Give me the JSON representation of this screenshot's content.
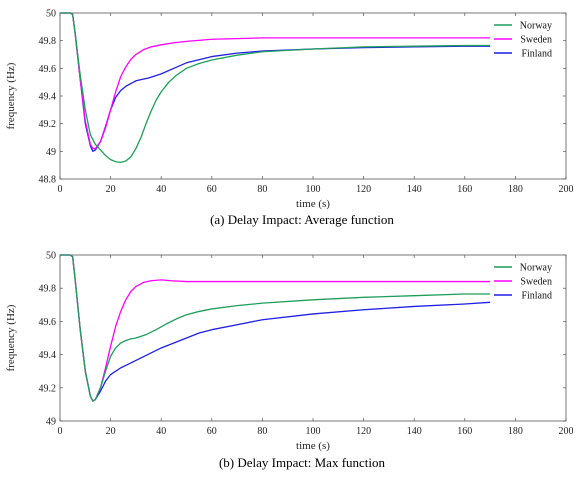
{
  "colors": {
    "norway": "#1f9e5a",
    "sweden": "#ff00ff",
    "finland": "#1f1fe6"
  },
  "chart_data": [
    {
      "type": "line",
      "caption": "(a) Delay Impact: Average function",
      "xlabel": "time (s)",
      "ylabel": "frequency (Hz)",
      "xlim": [
        0,
        200
      ],
      "ylim": [
        48.8,
        50
      ],
      "xticks": [
        0,
        20,
        40,
        60,
        80,
        100,
        120,
        140,
        160,
        180,
        200
      ],
      "yticks": [
        48.8,
        49,
        49.2,
        49.4,
        49.6,
        49.8,
        50
      ],
      "ytick_labels": [
        "48.8",
        "49",
        "49.2",
        "49.4",
        "49.6",
        "49.8",
        "50"
      ],
      "legend": "top-right",
      "series": [
        {
          "name": "Norway",
          "color": "#1f9e5a",
          "x": [
            0,
            4,
            5,
            6,
            8,
            10,
            12,
            14,
            16,
            18,
            20,
            22,
            24,
            26,
            28,
            30,
            32,
            34,
            36,
            38,
            40,
            43,
            46,
            50,
            55,
            60,
            70,
            80,
            100,
            120,
            140,
            160,
            170
          ],
          "y": [
            50,
            50,
            49.99,
            49.85,
            49.55,
            49.3,
            49.12,
            49.05,
            49.01,
            48.97,
            48.94,
            48.925,
            48.92,
            48.93,
            48.96,
            49.02,
            49.1,
            49.2,
            49.29,
            49.37,
            49.43,
            49.5,
            49.55,
            49.6,
            49.635,
            49.66,
            49.695,
            49.72,
            49.74,
            49.755,
            49.76,
            49.765,
            49.765
          ]
        },
        {
          "name": "Sweden",
          "color": "#ff00ff",
          "x": [
            0,
            4,
            5,
            6,
            8,
            10,
            12,
            13,
            14,
            16,
            18,
            20,
            22,
            24,
            26,
            28,
            30,
            33,
            36,
            40,
            45,
            50,
            60,
            70,
            80,
            100,
            120,
            140,
            160,
            170
          ],
          "y": [
            50,
            50,
            49.99,
            49.85,
            49.52,
            49.22,
            49.05,
            49.02,
            49.02,
            49.07,
            49.17,
            49.3,
            49.43,
            49.54,
            49.61,
            49.665,
            49.7,
            49.735,
            49.755,
            49.77,
            49.785,
            49.795,
            49.81,
            49.815,
            49.82,
            49.82,
            49.82,
            49.82,
            49.82,
            49.82
          ]
        },
        {
          "name": "Finland",
          "color": "#1f1fe6",
          "x": [
            0,
            4,
            5,
            6,
            8,
            10,
            12,
            13,
            14,
            16,
            18,
            20,
            22,
            24,
            26,
            30,
            35,
            40,
            45,
            50,
            60,
            70,
            80,
            100,
            120,
            140,
            160,
            170
          ],
          "y": [
            50,
            50,
            49.99,
            49.85,
            49.52,
            49.2,
            49.04,
            49.0,
            49.01,
            49.07,
            49.18,
            49.3,
            49.39,
            49.44,
            49.47,
            49.51,
            49.53,
            49.56,
            49.6,
            49.64,
            49.685,
            49.71,
            49.725,
            49.74,
            49.75,
            49.755,
            49.76,
            49.76
          ]
        }
      ]
    },
    {
      "type": "line",
      "caption": "(b) Delay Impact: Max function",
      "xlabel": "time (s)",
      "ylabel": "frequency (Hz)",
      "xlim": [
        0,
        200
      ],
      "ylim": [
        49,
        50
      ],
      "xticks": [
        0,
        20,
        40,
        60,
        80,
        100,
        120,
        140,
        160,
        180,
        200
      ],
      "yticks": [
        49,
        49.2,
        49.4,
        49.6,
        49.8,
        50
      ],
      "ytick_labels": [
        "49",
        "49.2",
        "49.4",
        "49.6",
        "49.8",
        "50"
      ],
      "legend": "top-right",
      "series": [
        {
          "name": "Norway",
          "color": "#1f9e5a",
          "x": [
            0,
            4,
            5,
            6,
            8,
            10,
            12,
            13,
            14,
            16,
            18,
            20,
            22,
            24,
            26,
            28,
            30,
            34,
            38,
            42,
            46,
            50,
            55,
            60,
            70,
            80,
            100,
            120,
            140,
            160,
            170
          ],
          "y": [
            50,
            50,
            49.99,
            49.85,
            49.55,
            49.3,
            49.15,
            49.12,
            49.13,
            49.2,
            49.3,
            49.39,
            49.44,
            49.47,
            49.485,
            49.495,
            49.5,
            49.52,
            49.55,
            49.585,
            49.615,
            49.64,
            49.66,
            49.675,
            49.695,
            49.71,
            49.73,
            49.745,
            49.755,
            49.765,
            49.765
          ]
        },
        {
          "name": "Sweden",
          "color": "#ff00ff",
          "x": [
            0,
            4,
            5,
            6,
            8,
            10,
            12,
            13,
            14,
            16,
            18,
            20,
            22,
            24,
            26,
            28,
            30,
            33,
            36,
            40,
            44,
            50,
            60,
            80,
            100,
            120,
            140,
            160,
            170
          ],
          "y": [
            50,
            50,
            49.99,
            49.85,
            49.55,
            49.3,
            49.15,
            49.12,
            49.13,
            49.2,
            49.32,
            49.45,
            49.57,
            49.66,
            49.73,
            49.78,
            49.81,
            49.835,
            49.845,
            49.85,
            49.845,
            49.84,
            49.84,
            49.84,
            49.84,
            49.84,
            49.84,
            49.84,
            49.84
          ]
        },
        {
          "name": "Finland",
          "color": "#1f1fe6",
          "x": [
            0,
            4,
            5,
            6,
            8,
            10,
            12,
            13,
            14,
            16,
            18,
            20,
            24,
            28,
            32,
            36,
            40,
            45,
            50,
            55,
            60,
            70,
            80,
            100,
            120,
            140,
            160,
            170
          ],
          "y": [
            50,
            50,
            49.99,
            49.85,
            49.55,
            49.3,
            49.15,
            49.12,
            49.13,
            49.18,
            49.24,
            49.28,
            49.32,
            49.35,
            49.38,
            49.41,
            49.44,
            49.47,
            49.5,
            49.53,
            49.55,
            49.58,
            49.61,
            49.645,
            49.67,
            49.69,
            49.705,
            49.715
          ]
        }
      ]
    }
  ]
}
